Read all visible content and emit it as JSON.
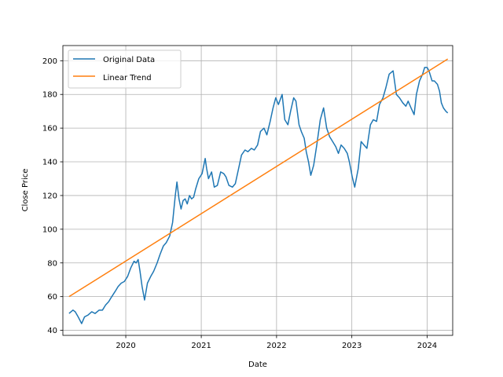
{
  "chart_data": {
    "type": "line",
    "title": "",
    "xlabel": "Date",
    "ylabel": "Close Price",
    "x_type": "date",
    "xlim": [
      "2019-03-02",
      "2024-05-04"
    ],
    "ylim": [
      37,
      209
    ],
    "grid": true,
    "legend_position": "top-left",
    "x_ticks": [
      {
        "value": "2020-01-01",
        "label": "2020"
      },
      {
        "value": "2021-01-01",
        "label": "2021"
      },
      {
        "value": "2022-01-01",
        "label": "2022"
      },
      {
        "value": "2023-01-01",
        "label": "2023"
      },
      {
        "value": "2024-01-01",
        "label": "2024"
      }
    ],
    "y_ticks": [
      40,
      60,
      80,
      100,
      120,
      140,
      160,
      180,
      200
    ],
    "colors": {
      "original": "#1f77b4",
      "trend": "#ff7f0e",
      "grid": "#b0b0b0"
    },
    "series": [
      {
        "name": "Original Data",
        "color": "#1f77b4",
        "x": [
          "2019-04-01",
          "2019-04-20",
          "2019-05-01",
          "2019-05-15",
          "2019-06-01",
          "2019-06-15",
          "2019-07-01",
          "2019-07-20",
          "2019-08-05",
          "2019-08-25",
          "2019-09-10",
          "2019-09-25",
          "2019-10-10",
          "2019-10-25",
          "2019-11-10",
          "2019-11-25",
          "2019-12-10",
          "2019-12-25",
          "2020-01-10",
          "2020-01-25",
          "2020-02-10",
          "2020-02-20",
          "2020-03-01",
          "2020-03-10",
          "2020-03-20",
          "2020-04-01",
          "2020-04-15",
          "2020-05-01",
          "2020-05-15",
          "2020-06-01",
          "2020-06-15",
          "2020-07-01",
          "2020-07-15",
          "2020-08-01",
          "2020-08-15",
          "2020-08-28",
          "2020-09-05",
          "2020-09-15",
          "2020-09-25",
          "2020-10-05",
          "2020-10-15",
          "2020-10-25",
          "2020-11-05",
          "2020-11-15",
          "2020-11-25",
          "2020-12-05",
          "2020-12-20",
          "2021-01-05",
          "2021-01-20",
          "2021-01-27",
          "2021-02-05",
          "2021-02-20",
          "2021-03-05",
          "2021-03-20",
          "2021-04-05",
          "2021-04-20",
          "2021-05-01",
          "2021-05-15",
          "2021-06-01",
          "2021-06-15",
          "2021-07-01",
          "2021-07-15",
          "2021-08-01",
          "2021-08-15",
          "2021-09-01",
          "2021-09-15",
          "2021-10-01",
          "2021-10-15",
          "2021-11-01",
          "2021-11-15",
          "2021-12-01",
          "2021-12-15",
          "2021-12-28",
          "2022-01-10",
          "2022-01-28",
          "2022-02-10",
          "2022-02-25",
          "2022-03-10",
          "2022-03-25",
          "2022-04-05",
          "2022-04-20",
          "2022-05-01",
          "2022-05-15",
          "2022-05-25",
          "2022-06-05",
          "2022-06-16",
          "2022-06-30",
          "2022-07-15",
          "2022-08-01",
          "2022-08-17",
          "2022-09-01",
          "2022-09-15",
          "2022-09-30",
          "2022-10-15",
          "2022-10-28",
          "2022-11-10",
          "2022-11-25",
          "2022-12-10",
          "2022-12-20",
          "2023-01-03",
          "2023-01-15",
          "2023-02-01",
          "2023-02-15",
          "2023-03-01",
          "2023-03-15",
          "2023-04-01",
          "2023-04-15",
          "2023-05-01",
          "2023-05-15",
          "2023-06-01",
          "2023-06-15",
          "2023-07-01",
          "2023-07-20",
          "2023-08-05",
          "2023-08-20",
          "2023-09-05",
          "2023-09-20",
          "2023-10-01",
          "2023-10-15",
          "2023-10-30",
          "2023-11-10",
          "2023-11-25",
          "2023-12-10",
          "2023-12-20",
          "2024-01-01",
          "2024-01-10",
          "2024-01-25",
          "2024-02-05",
          "2024-02-20",
          "2024-03-01",
          "2024-03-10",
          "2024-03-20",
          "2024-04-01",
          "2024-04-10"
        ],
        "y": [
          50,
          52,
          51,
          48,
          44,
          48,
          49,
          51,
          50,
          52,
          52,
          55,
          57,
          60,
          63,
          66,
          68,
          69,
          72,
          77,
          81,
          80,
          82,
          75,
          66,
          58,
          68,
          72,
          75,
          80,
          85,
          90,
          92,
          96,
          104,
          120,
          128,
          118,
          112,
          117,
          118,
          115,
          120,
          118,
          119,
          124,
          130,
          133,
          142,
          136,
          130,
          134,
          125,
          126,
          134,
          133,
          131,
          126,
          125,
          127,
          136,
          144,
          147,
          146,
          148,
          147,
          150,
          158,
          160,
          156,
          164,
          172,
          178,
          174,
          180,
          165,
          162,
          170,
          178,
          176,
          162,
          158,
          154,
          146,
          140,
          132,
          138,
          150,
          165,
          172,
          160,
          155,
          152,
          149,
          145,
          150,
          148,
          145,
          140,
          131,
          125,
          136,
          152,
          150,
          148,
          162,
          165,
          164,
          174,
          178,
          184,
          192,
          194,
          180,
          178,
          175,
          173,
          176,
          172,
          168,
          180,
          188,
          192,
          196,
          196,
          194,
          188,
          188,
          186,
          182,
          175,
          172,
          170,
          169
        ]
      },
      {
        "name": "Linear Trend",
        "color": "#ff7f0e",
        "x": [
          "2019-04-01",
          "2024-04-10"
        ],
        "y": [
          60,
          201
        ]
      }
    ]
  }
}
